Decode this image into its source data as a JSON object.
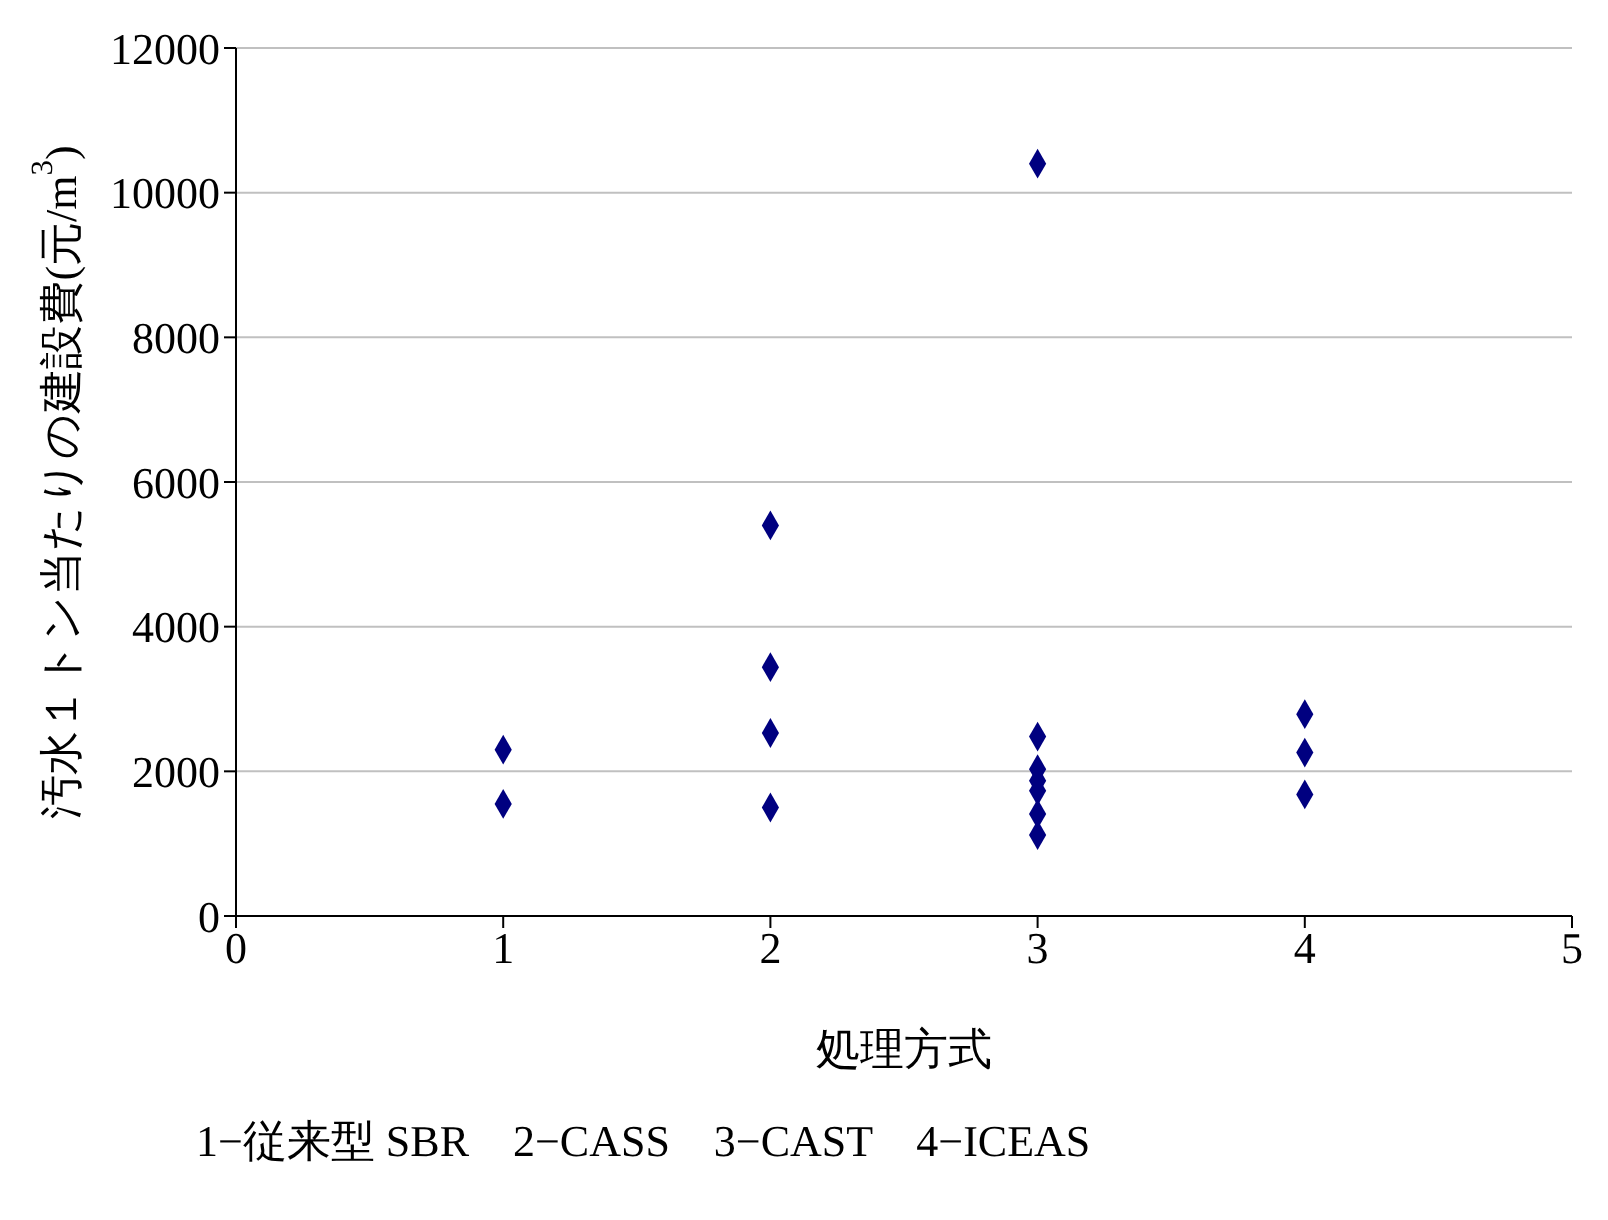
{
  "chart_data": {
    "type": "scatter",
    "xlabel": "処理方式",
    "ylabel": "汚水１トン当たりの建設費(元/m$^{3}$)",
    "annotations": [
      "1−従来型 SBR　2−CASS　3−CAST　4−ICEAS"
    ],
    "series": [
      {
        "color": "#000080",
        "x": [
          1,
          1,
          2,
          2,
          2,
          2,
          3,
          3,
          3,
          3,
          3,
          3,
          3,
          4,
          4,
          4
        ],
        "values": [
          2300,
          1550,
          5400,
          3440,
          2530,
          1500,
          10400,
          2480,
          2030,
          1870,
          1730,
          1410,
          1120,
          2790,
          2260,
          1680
        ]
      }
    ],
    "xlim": [
      0,
      5
    ],
    "xticks": [
      0,
      1,
      2,
      3,
      4,
      5
    ],
    "ylim": [
      0,
      12000
    ],
    "yticks": [
      0,
      2000,
      4000,
      6000,
      8000,
      10000,
      12000
    ],
    "grid": "y",
    "marker": "diamond",
    "legend": false
  }
}
